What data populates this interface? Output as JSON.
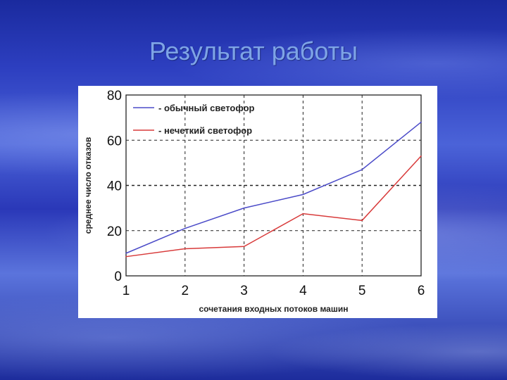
{
  "slide": {
    "title": "Результат работы"
  },
  "chart_data": {
    "type": "line",
    "title": "",
    "xlabel": "сочетания входных потоков машин",
    "ylabel": "среднее число отказов",
    "x": [
      1,
      2,
      3,
      4,
      5,
      6
    ],
    "xlim": [
      1,
      6
    ],
    "ylim": [
      0,
      80
    ],
    "yticks": [
      0,
      20,
      40,
      60,
      80
    ],
    "grid": true,
    "legend_position": "top-left",
    "series": [
      {
        "name": "- обычный светофор",
        "color": "#4b4bc8",
        "values": [
          10,
          21,
          30,
          36,
          47,
          68
        ]
      },
      {
        "name": "- нечеткий светофор",
        "color": "#d83a3a",
        "values": [
          8.5,
          12,
          13,
          27.5,
          24.5,
          53
        ]
      }
    ]
  }
}
